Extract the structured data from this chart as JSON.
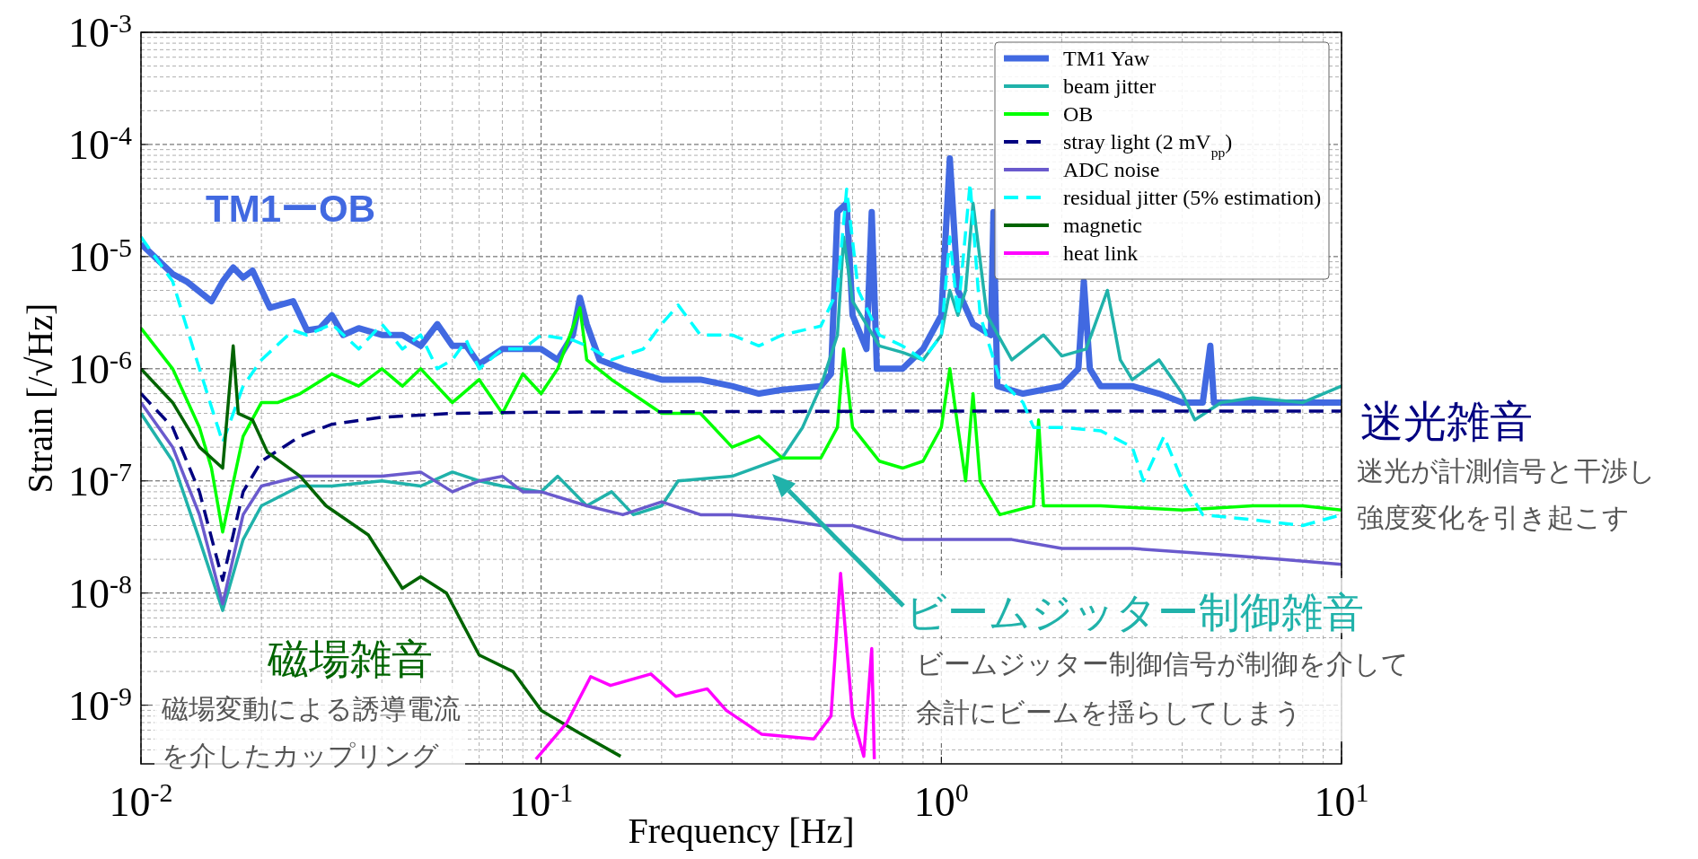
{
  "chart_data": {
    "type": "line",
    "xlabel": "Frequency [Hz]",
    "ylabel": "Strain [/√Hz]",
    "log": "xy",
    "grid": true,
    "legend": "top right",
    "xlim": [
      0.01,
      10
    ],
    "xticks": [
      {
        "value": 0.01,
        "label": "10$^{-2}$"
      },
      {
        "value": 0.1,
        "label": "10$^{-1}$"
      },
      {
        "value": 1,
        "label": "10$^{0}$"
      },
      {
        "value": 10,
        "label": "10$^{1}$"
      }
    ],
    "ylim": [
      3e-10,
      0.001
    ],
    "yticks": [
      {
        "value": 1e-09,
        "label": "10$^{-9}$"
      },
      {
        "value": 1e-08,
        "label": "10$^{-8}$"
      },
      {
        "value": 1e-07,
        "label": "10$^{-7}$"
      },
      {
        "value": 1e-06,
        "label": "10$^{-6}$"
      },
      {
        "value": 1e-05,
        "label": "10$^{-5}$"
      },
      {
        "value": 0.0001,
        "label": "10$^{-4}$"
      },
      {
        "value": 0.001,
        "label": "10$^{-3}$"
      }
    ],
    "series": [
      {
        "name": "TM1 Yaw",
        "color": "#4169e1",
        "x": [
          0.01,
          0.012,
          0.013,
          0.015,
          0.016,
          0.017,
          0.018,
          0.019,
          0.021,
          0.024,
          0.026,
          0.028,
          0.03,
          0.032,
          0.035,
          0.04,
          0.045,
          0.05,
          0.055,
          0.06,
          0.065,
          0.07,
          0.08,
          0.09,
          0.1,
          0.11,
          0.12,
          0.125,
          0.13,
          0.14,
          0.16,
          0.2,
          0.25,
          0.3,
          0.35,
          0.4,
          0.5,
          0.53,
          0.55,
          0.58,
          0.6,
          0.65,
          0.67,
          0.69,
          0.8,
          0.9,
          1.0,
          1.05,
          1.1,
          1.2,
          1.33,
          1.35,
          1.38,
          1.6,
          2.0,
          2.2,
          2.27,
          2.35,
          2.5,
          3.0,
          3.5,
          4.0,
          4.5,
          4.7,
          4.8,
          6,
          8,
          10
        ],
        "values": [
          1.3e-05,
          7e-06,
          6e-06,
          4e-06,
          6e-06,
          8e-06,
          6.5e-06,
          7.5e-06,
          3.5e-06,
          4e-06,
          2.2e-06,
          2.3e-06,
          3e-06,
          2e-06,
          2.3e-06,
          2e-06,
          2e-06,
          1.6e-06,
          2.5e-06,
          1.6e-06,
          1.6e-06,
          1.1e-06,
          1.5e-06,
          1.5e-06,
          1.5e-06,
          1.2e-06,
          2e-06,
          4.3e-06,
          2.5e-06,
          1.2e-06,
          1e-06,
          8e-07,
          8e-07,
          7e-07,
          6e-07,
          6.5e-07,
          7e-07,
          9e-07,
          2.5e-05,
          3e-05,
          3e-06,
          1.5e-06,
          2.5e-05,
          1e-06,
          1e-06,
          1.5e-06,
          3e-06,
          7.5e-05,
          5e-06,
          2.5e-06,
          2e-06,
          2.5e-05,
          7e-07,
          6e-07,
          7e-07,
          1e-06,
          6e-06,
          1e-06,
          7e-07,
          7e-07,
          6e-07,
          5e-07,
          5e-07,
          1.6e-06,
          5e-07,
          5e-07,
          5e-07,
          5e-07
        ]
      },
      {
        "name": "beam jitter",
        "color": "#20b2aa",
        "x": [
          0.01,
          0.012,
          0.014,
          0.016,
          0.018,
          0.02,
          0.025,
          0.03,
          0.04,
          0.05,
          0.06,
          0.07,
          0.08,
          0.1,
          0.11,
          0.13,
          0.15,
          0.17,
          0.2,
          0.22,
          0.3,
          0.4,
          0.45,
          0.5,
          0.55,
          0.57,
          0.6,
          0.7,
          0.8,
          0.9,
          1.0,
          1.05,
          1.1,
          1.15,
          1.2,
          1.3,
          1.5,
          1.8,
          2.0,
          2.3,
          2.6,
          2.8,
          3.0,
          3.5,
          4.0,
          4.3,
          5,
          6,
          8,
          10
        ],
        "values": [
          4e-07,
          1.5e-07,
          3e-08,
          7e-09,
          3e-08,
          6e-08,
          9e-08,
          9e-08,
          1e-07,
          9e-08,
          1.2e-07,
          1e-07,
          9e-08,
          8e-08,
          1.1e-07,
          6e-08,
          8e-08,
          5e-08,
          6e-08,
          1e-07,
          1.1e-07,
          1.6e-07,
          3e-07,
          7e-07,
          2e-06,
          1.5e-05,
          4e-06,
          1.6e-06,
          1.4e-06,
          1.2e-06,
          2e-06,
          5e-06,
          3e-06,
          5e-06,
          3e-05,
          3e-06,
          1.2e-06,
          2e-06,
          1.3e-06,
          1.5e-06,
          5e-06,
          1.2e-06,
          8e-07,
          1.2e-06,
          6e-07,
          3.5e-07,
          5e-07,
          5.5e-07,
          5e-07,
          7e-07
        ]
      },
      {
        "name": "OB",
        "color": "#00ff00",
        "x": [
          0.01,
          0.012,
          0.014,
          0.015,
          0.016,
          0.018,
          0.02,
          0.022,
          0.025,
          0.03,
          0.035,
          0.04,
          0.045,
          0.05,
          0.06,
          0.07,
          0.08,
          0.09,
          0.1,
          0.11,
          0.125,
          0.13,
          0.15,
          0.2,
          0.25,
          0.3,
          0.35,
          0.4,
          0.5,
          0.55,
          0.57,
          0.6,
          0.7,
          0.8,
          0.9,
          1.0,
          1.05,
          1.1,
          1.15,
          1.2,
          1.25,
          1.4,
          1.7,
          1.75,
          1.8,
          2.5,
          4,
          6,
          8,
          10
        ],
        "values": [
          2.3e-06,
          1e-06,
          3e-07,
          1.3e-07,
          3.5e-08,
          2.5e-07,
          5e-07,
          5e-07,
          6e-07,
          9e-07,
          7e-07,
          1e-06,
          7e-07,
          1e-06,
          5e-07,
          8e-07,
          4e-07,
          9e-07,
          6e-07,
          1e-06,
          3.5e-06,
          1.2e-06,
          8e-07,
          4e-07,
          4e-07,
          2e-07,
          2.5e-07,
          1.6e-07,
          1.6e-07,
          3e-07,
          1.5e-06,
          3e-07,
          1.5e-07,
          1.3e-07,
          1.5e-07,
          3e-07,
          1e-06,
          3e-07,
          1e-07,
          6e-07,
          1e-07,
          5e-08,
          6e-08,
          3.5e-07,
          6e-08,
          6e-08,
          5.5e-08,
          6e-08,
          6e-08,
          5.5e-08
        ]
      },
      {
        "name": "stray light (2 mV$_{pp}$)",
        "color": "#000080",
        "line_style": "dashed",
        "x": [
          0.01,
          0.012,
          0.014,
          0.016,
          0.018,
          0.02,
          0.025,
          0.03,
          0.04,
          0.06,
          0.1,
          1,
          10
        ],
        "values": [
          6e-07,
          3e-07,
          8e-08,
          1.3e-08,
          8e-08,
          1.5e-07,
          2.5e-07,
          3.2e-07,
          3.7e-07,
          4e-07,
          4.1e-07,
          4.2e-07,
          4.2e-07
        ]
      },
      {
        "name": "ADC noise",
        "color": "#6a5acd",
        "x": [
          0.01,
          0.012,
          0.014,
          0.016,
          0.018,
          0.02,
          0.025,
          0.03,
          0.04,
          0.05,
          0.06,
          0.07,
          0.08,
          0.09,
          0.1,
          0.13,
          0.16,
          0.2,
          0.25,
          0.3,
          0.4,
          0.5,
          0.6,
          0.8,
          1.0,
          1.5,
          2,
          3,
          5,
          7,
          10
        ],
        "values": [
          5e-07,
          2e-07,
          5e-08,
          8e-09,
          5e-08,
          9e-08,
          1.1e-07,
          1.1e-07,
          1.1e-07,
          1.2e-07,
          8e-08,
          1e-07,
          1.1e-07,
          8e-08,
          8e-08,
          6e-08,
          5e-08,
          6.5e-08,
          5e-08,
          5e-08,
          4.5e-08,
          4e-08,
          4e-08,
          3e-08,
          3e-08,
          3e-08,
          2.5e-08,
          2.5e-08,
          2.2e-08,
          2e-08,
          1.8e-08
        ]
      },
      {
        "name": "residual jitter (5% estimation)",
        "color": "#00ffff",
        "line_style": "dashed",
        "x": [
          0.01,
          0.012,
          0.014,
          0.016,
          0.018,
          0.02,
          0.024,
          0.026,
          0.03,
          0.035,
          0.04,
          0.045,
          0.05,
          0.055,
          0.06,
          0.065,
          0.07,
          0.08,
          0.09,
          0.1,
          0.12,
          0.13,
          0.15,
          0.18,
          0.2,
          0.22,
          0.25,
          0.3,
          0.35,
          0.4,
          0.5,
          0.55,
          0.58,
          0.62,
          0.7,
          0.8,
          0.9,
          1.0,
          1.05,
          1.1,
          1.18,
          1.25,
          1.4,
          1.6,
          1.7,
          2.0,
          2.5,
          3.0,
          3.2,
          3.6,
          4.0,
          4.5,
          6,
          8,
          10
        ],
        "values": [
          1.5e-05,
          6e-06,
          1e-06,
          2.2e-07,
          7e-07,
          1.2e-06,
          2.2e-06,
          2e-06,
          2.5e-06,
          1.5e-06,
          2.5e-06,
          1.5e-06,
          2e-06,
          1e-06,
          1.2e-06,
          1.8e-06,
          1e-06,
          1.5e-06,
          1.5e-06,
          2e-06,
          1.8e-06,
          1.6e-06,
          1.2e-06,
          1.5e-06,
          2.5e-06,
          3.7e-06,
          2e-06,
          2e-06,
          1.6e-06,
          2e-06,
          2.4e-06,
          5e-06,
          4e-05,
          5e-06,
          2e-06,
          1.6e-06,
          1.2e-06,
          2e-06,
          1.5e-05,
          3e-06,
          4.5e-05,
          3e-06,
          8e-07,
          5e-07,
          3e-07,
          3e-07,
          2.8e-07,
          2e-07,
          1e-07,
          2.5e-07,
          1e-07,
          5e-08,
          4.5e-08,
          4e-08,
          5e-08
        ]
      },
      {
        "name": "magnetic",
        "color": "#006400",
        "x": [
          0.01,
          0.012,
          0.014,
          0.016,
          0.017,
          0.0175,
          0.019,
          0.0207,
          0.025,
          0.029,
          0.037,
          0.045,
          0.05,
          0.058,
          0.07,
          0.085,
          0.1,
          0.123,
          0.158
        ],
        "values": [
          1e-06,
          5e-07,
          2e-07,
          1.3e-07,
          1.6e-06,
          4e-07,
          3.5e-07,
          1.8e-07,
          1.1e-07,
          6e-08,
          3.3e-08,
          1.1e-08,
          1.4e-08,
          1e-08,
          2.8e-09,
          2e-09,
          9e-10,
          5.8e-10,
          3.5e-10
        ]
      },
      {
        "name": "heat link",
        "color": "#ff00ff",
        "x": [
          0.097,
          0.116,
          0.133,
          0.149,
          0.188,
          0.217,
          0.26,
          0.29,
          0.356,
          0.48,
          0.53,
          0.56,
          0.6,
          0.64,
          0.67,
          0.68
        ],
        "values": [
          3.3e-10,
          7e-10,
          1.8e-09,
          1.5e-09,
          1.9e-09,
          1.2e-09,
          1.4e-09,
          9e-10,
          5.5e-10,
          5e-10,
          8e-10,
          1.5e-08,
          8e-10,
          3.5e-10,
          3.2e-09,
          3.3e-10
        ]
      }
    ],
    "annotations": [
      "TM1ーOB",
      "迷光雑音",
      "迷光が計測信号と干渉し強度変化を引き起こす",
      "ビームジッター制御雑音",
      "ビームジッター制御信号が制御を介して余計にビームを揺らしてしまう",
      "磁場雑音",
      "磁場変動による誘導電流を介したカップリング"
    ]
  }
}
